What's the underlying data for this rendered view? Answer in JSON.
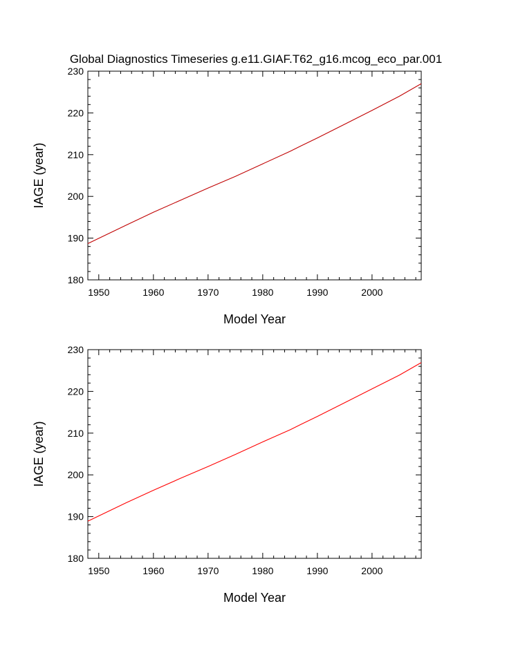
{
  "figure": {
    "title": "Global Diagnostics Timeseries g.e11.GIAF.T62_g16.mcog_eco_par.001",
    "background": "#ffffff",
    "axis_color": "#000000"
  },
  "chart_data": [
    {
      "type": "line",
      "title": "Global Diagnostics Timeseries g.e11.GIAF.T62_g16.mcog_eco_par.001",
      "xlabel": "Model Year",
      "ylabel": "IAGE (year)",
      "xlim": [
        1948,
        2009
      ],
      "ylim": [
        180,
        230
      ],
      "xticks": [
        1950,
        1960,
        1970,
        1980,
        1990,
        2000
      ],
      "xtick_labels": [
        "1950",
        "1960",
        "1970",
        "1980",
        "1990",
        "2000"
      ],
      "yticks": [
        180,
        190,
        200,
        210,
        220,
        230
      ],
      "ytick_labels": [
        "180",
        "190",
        "200",
        "210",
        "220",
        "230"
      ],
      "x_minor_step": 2,
      "y_minor_step": 2,
      "grid": false,
      "series": [
        {
          "color": "#c00000",
          "x": [
            1948,
            1955,
            1960,
            1965,
            1970,
            1975,
            1980,
            1985,
            1987,
            1990,
            1995,
            2000,
            2005,
            2009
          ],
          "y": [
            188.7,
            193.1,
            196.2,
            199.1,
            202.0,
            204.8,
            207.8,
            210.8,
            212.1,
            214.0,
            217.3,
            220.6,
            224.0,
            227.0
          ]
        }
      ]
    },
    {
      "type": "line",
      "title": "",
      "xlabel": "Model Year",
      "ylabel": "IAGE (year)",
      "xlim": [
        1948,
        2009
      ],
      "ylim": [
        180,
        230
      ],
      "xticks": [
        1950,
        1960,
        1970,
        1980,
        1990,
        2000
      ],
      "xtick_labels": [
        "1950",
        "1960",
        "1970",
        "1980",
        "1990",
        "2000"
      ],
      "yticks": [
        180,
        190,
        200,
        210,
        220,
        230
      ],
      "ytick_labels": [
        "180",
        "190",
        "200",
        "210",
        "220",
        "230"
      ],
      "x_minor_step": 2,
      "y_minor_step": 2,
      "grid": false,
      "series": [
        {
          "color": "#ff0000",
          "x": [
            1948,
            1955,
            1960,
            1965,
            1970,
            1975,
            1980,
            1985,
            1987,
            1990,
            1995,
            2000,
            2005,
            2009
          ],
          "y": [
            188.9,
            193.3,
            196.3,
            199.2,
            202.0,
            204.9,
            207.9,
            210.8,
            212.1,
            214.0,
            217.3,
            220.6,
            223.9,
            226.9
          ]
        }
      ]
    }
  ]
}
